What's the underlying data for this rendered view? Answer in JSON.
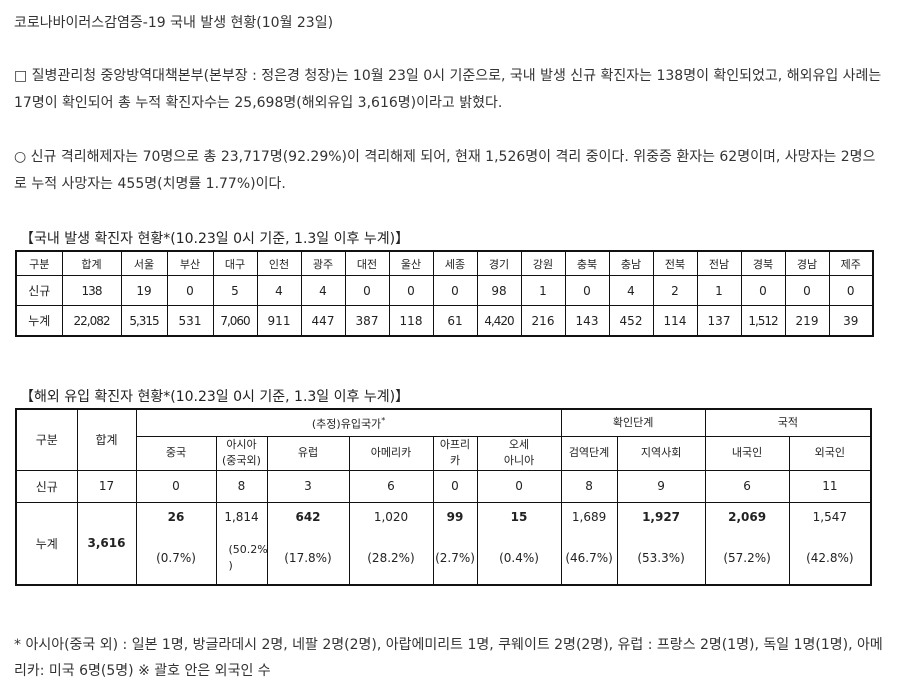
{
  "title": "코로나바이러스감염증-19 국내 발생 현황(10월 23일)",
  "para1": "□ 질병관리청 중앙방역대책본부(본부장 : 정은경 청장)는 10월 23일 0시 기준으로, 국내 발생 신규 확진자는 138명이 확인되었고, 해외유입 사례는 17명이 확인되어 총 누적 확진자수는 25,698명(해외유입 3,616명)이라고 밝혔다.",
  "para2": " ○ 신규 격리해제자는 70명으로 총 23,717명(92.29%)이 격리해제 되어, 현재 1,526명이 격리 중이다. 위중증 환자는 62명이며, 사망자는 2명으로 누적 사망자는 455명(치명률 1.77%)이다.",
  "domestic": {
    "caption": "【국내 발생 확진자 현황*(10.23일 0시 기준, 1.3일 이후 누계)】",
    "headers": [
      "구분",
      "합계",
      "서울",
      "부산",
      "대구",
      "인천",
      "광주",
      "대전",
      "울산",
      "세종",
      "경기",
      "강원",
      "충북",
      "충남",
      "전북",
      "전남",
      "경북",
      "경남",
      "제주"
    ],
    "rows": [
      {
        "label": "신규",
        "values": [
          "138",
          "19",
          "0",
          "5",
          "4",
          "4",
          "0",
          "0",
          "0",
          "98",
          "1",
          "0",
          "4",
          "2",
          "1",
          "0",
          "0",
          "0"
        ]
      },
      {
        "label": "누계",
        "values": [
          "22,082",
          "5,315",
          "531",
          "7,060",
          "911",
          "447",
          "387",
          "118",
          "61",
          "4,420",
          "216",
          "143",
          "452",
          "114",
          "137",
          "1,512",
          "219",
          "39"
        ]
      }
    ]
  },
  "overseas": {
    "caption": "【해외 유입 확진자 현황*(10.23일 0시 기준, 1.3일 이후 누계)】",
    "h_gubun": "구분",
    "h_total": "합계",
    "h_group_origin": "(추정)유입국가",
    "h_group_origin_mark": "*",
    "h_group_confirm": "확인단계",
    "h_group_nation": "국적",
    "h_china": "중국",
    "h_asia_1": "아시아",
    "h_asia_2": "(중국외)",
    "h_europe": "유럽",
    "h_america": "아메리카",
    "h_africa_1": "아프리",
    "h_africa_2": "카",
    "h_oceania_1": "오세",
    "h_oceania_2": "아니아",
    "h_quarantine": "검역단계",
    "h_local": "지역사회",
    "h_korean": "내국인",
    "h_foreign": "외국인",
    "new_label": "신규",
    "new_values": [
      "17",
      "0",
      "8",
      "3",
      "6",
      "0",
      "0",
      "8",
      "9",
      "6",
      "11"
    ],
    "cum_label": "누계",
    "cum_total": "3,616",
    "cum_values": [
      "26",
      "1,814",
      "642",
      "1,020",
      "99",
      "15",
      "1,689",
      "1,927",
      "2,069",
      "1,547"
    ],
    "cum_pct": [
      "(0.7%)",
      "(50.2%",
      ")",
      "(17.8%)",
      "(28.2%)",
      "(2.7%)",
      "(0.4%)",
      "(46.7%)",
      "(53.3%)",
      "(57.2%)",
      "(42.8%)"
    ]
  },
  "footnote": " * 아시아(중국 외) : 일본 1명, 방글라데시 2명, 네팔 2명(2명), 아랍에미리트 1명, 쿠웨이트 2명(2명),  유럽 : 프랑스 2명(1명), 독일 1명(1명), 아메리카: 미국 6명(5명) ※ 괄호 안은 외국인 수"
}
